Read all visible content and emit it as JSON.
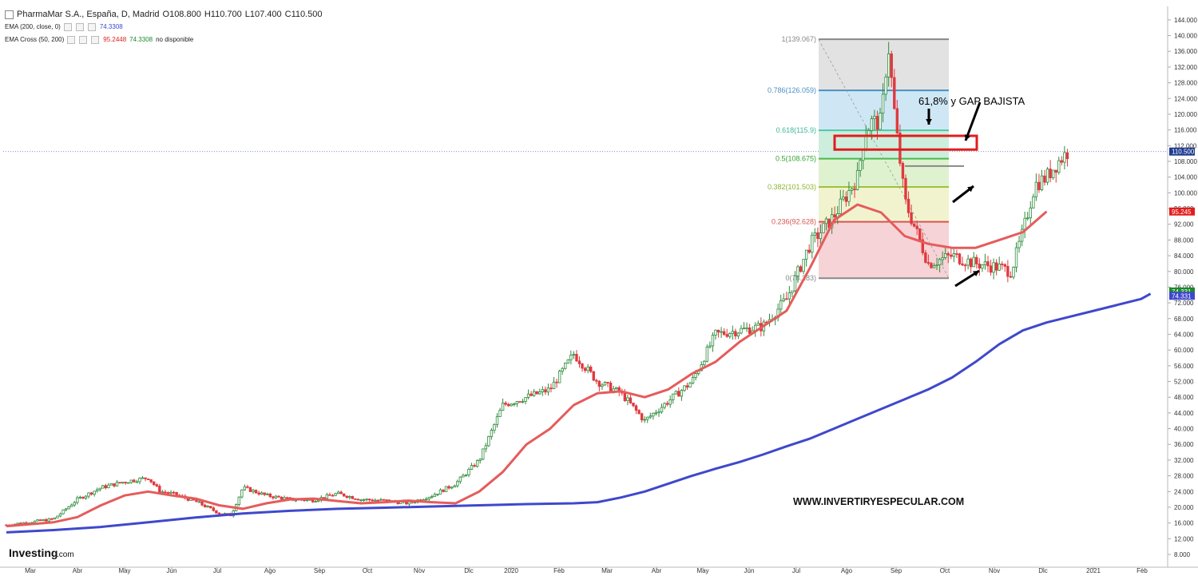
{
  "header": {
    "instrument": "PharmaMar S.A., España, D, Madrid",
    "open": "O108.800",
    "high": "H110.700",
    "low": "L107.400",
    "close": "C110.500",
    "ema200_label": "EMA (200, close, 0)",
    "ema200_value": "74.3308",
    "emacross_label": "EMA Cross (50, 200)",
    "emacross_fast": "95.2448",
    "emacross_slow": "74.3308",
    "emacross_status": "no disponible"
  },
  "brand": {
    "logo_text": "Investing",
    "logo_suffix": ".com"
  },
  "watermark": "WWW.INVERTIRYESPECULAR.COM",
  "annotation": "61,8% y GAP BAJISTA",
  "colors": {
    "up": "#2e8b3c",
    "down": "#e0393e",
    "ema50": "#e65b5b",
    "ema200": "#3f48cc",
    "accent_box": "#e11d1d"
  },
  "chart_data": {
    "type": "candlestick",
    "y_axis_ticks": [
      "144.000",
      "140.000",
      "136.000",
      "132.000",
      "128.000",
      "124.000",
      "120.000",
      "116.000",
      "112.000",
      "108.000",
      "104.000",
      "100.000",
      "96.000",
      "92.000",
      "88.000",
      "84.000",
      "80.000",
      "76.000",
      "72.000",
      "68.000",
      "64.000",
      "60.000",
      "56.000",
      "52.000",
      "48.000",
      "44.000",
      "40.000",
      "36.000",
      "32.000",
      "28.000",
      "24.000",
      "20.000",
      "16.000",
      "12.000",
      "8.000"
    ],
    "ylim": [
      4,
      146
    ],
    "x_axis_ticks": [
      "Mar",
      "Abr",
      "May",
      "Jun",
      "Jul",
      "Ago",
      "Sep",
      "Oct",
      "Nov",
      "Dic",
      "2020",
      "Feb",
      "Mar",
      "Abr",
      "May",
      "Jun",
      "Jul",
      "Ago",
      "Sep",
      "Oct",
      "Nov",
      "Dic",
      "2021",
      "Feb"
    ],
    "price_badges": [
      {
        "label": "110.500",
        "value": 110.5,
        "color": "#1f3c8f"
      },
      {
        "label": "95.245",
        "value": 95.245,
        "color": "#e11d1d"
      },
      {
        "label": "74.331",
        "value": 74.9,
        "color": "#1a8a2a"
      },
      {
        "label": "74.331",
        "value": 73.8,
        "color": "#3f48cc"
      }
    ],
    "last_price": 110.5,
    "fibonacci": [
      {
        "label": "1(139.067)",
        "value": 139.067
      },
      {
        "label": "0.786(126.059)",
        "value": 126.059
      },
      {
        "label": "0.618(115.9)",
        "value": 115.9
      },
      {
        "label": "0.5(108.675)",
        "value": 108.675
      },
      {
        "label": "0.382(101.503)",
        "value": 101.503
      },
      {
        "label": "0.236(92.628)",
        "value": 92.628
      },
      {
        "label": "0(78.283)",
        "value": 78.283
      }
    ],
    "series": [
      {
        "name": "EMA (200, close, 0)",
        "points": [
          [
            0,
            13.6
          ],
          [
            2,
            14.2
          ],
          [
            4,
            15.0
          ],
          [
            6,
            16.2
          ],
          [
            8,
            17.4
          ],
          [
            10,
            18.4
          ],
          [
            12,
            19.1
          ],
          [
            14,
            19.6
          ],
          [
            16,
            19.9
          ],
          [
            18,
            20.2
          ],
          [
            20,
            20.5
          ],
          [
            22,
            20.8
          ],
          [
            24,
            21.0
          ],
          [
            25,
            21.3
          ],
          [
            26,
            22.5
          ],
          [
            27,
            24.0
          ],
          [
            28,
            26.0
          ],
          [
            29,
            28.0
          ],
          [
            30,
            29.8
          ],
          [
            31,
            31.5
          ],
          [
            32,
            33.4
          ],
          [
            33,
            35.5
          ],
          [
            34,
            37.5
          ],
          [
            35,
            40.0
          ],
          [
            36,
            42.5
          ],
          [
            37,
            45.0
          ],
          [
            38,
            47.5
          ],
          [
            39,
            50.0
          ],
          [
            40,
            53.0
          ],
          [
            41,
            57.0
          ],
          [
            42,
            61.5
          ],
          [
            43,
            65.0
          ],
          [
            44,
            67.0
          ],
          [
            45,
            68.5
          ],
          [
            46,
            70.0
          ],
          [
            47,
            71.5
          ],
          [
            48,
            73.0
          ],
          [
            48.4,
            74.33
          ]
        ]
      },
      {
        "name": "EMA Cross (50, 200)",
        "points": [
          [
            0,
            15.2
          ],
          [
            2,
            16.2
          ],
          [
            3,
            17.5
          ],
          [
            4,
            20.5
          ],
          [
            5,
            23.0
          ],
          [
            6,
            24.0
          ],
          [
            7,
            23.0
          ],
          [
            8,
            22.2
          ],
          [
            9,
            20.5
          ],
          [
            10,
            19.6
          ],
          [
            11,
            21.0
          ],
          [
            12,
            22.0
          ],
          [
            13,
            22.2
          ],
          [
            14,
            21.6
          ],
          [
            15,
            21.0
          ],
          [
            16,
            21.3
          ],
          [
            17,
            21.7
          ],
          [
            18,
            21.3
          ],
          [
            19,
            21.0
          ],
          [
            20,
            24.0
          ],
          [
            21,
            29.0
          ],
          [
            22,
            36.0
          ],
          [
            23,
            40.0
          ],
          [
            24,
            46.0
          ],
          [
            25,
            49.0
          ],
          [
            26,
            49.5
          ],
          [
            27,
            48.0
          ],
          [
            28,
            50.0
          ],
          [
            29,
            54.0
          ],
          [
            30,
            57.0
          ],
          [
            31,
            62.0
          ],
          [
            32,
            66.0
          ],
          [
            33,
            70.0
          ],
          [
            34,
            81.0
          ],
          [
            35,
            93.0
          ],
          [
            36,
            97.0
          ],
          [
            37,
            95.0
          ],
          [
            38,
            89.0
          ],
          [
            39,
            87.0
          ],
          [
            40,
            86.0
          ],
          [
            41,
            86.0
          ],
          [
            42,
            88.0
          ],
          [
            43,
            90.0
          ],
          [
            44,
            95.2448
          ]
        ]
      }
    ],
    "annotation_box": {
      "low": 111.0,
      "high": 114.5
    },
    "resistance_line": 106.8
  }
}
